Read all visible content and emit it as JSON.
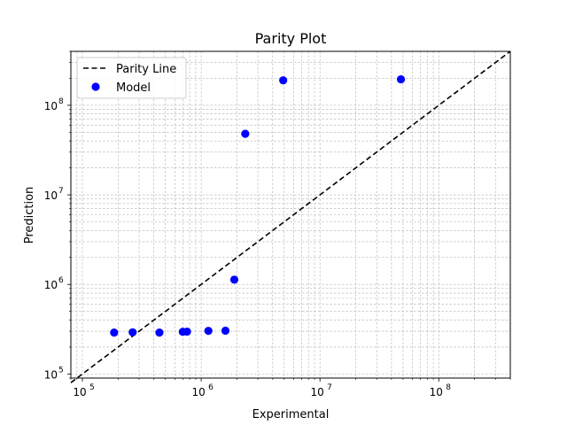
{
  "chart_data": {
    "type": "scatter",
    "title": "Parity Plot",
    "xlabel": "Experimental",
    "ylabel": "Prediction",
    "xscale": "log",
    "yscale": "log",
    "xlim": [
      80000,
      400000000
    ],
    "ylim": [
      90000,
      400000000
    ],
    "grid": true,
    "grid_minor": true,
    "legend_position": "top-left",
    "x_ticks": [
      {
        "value": 100000,
        "base": "10",
        "exp": "5"
      },
      {
        "value": 1000000,
        "base": "10",
        "exp": "6"
      },
      {
        "value": 10000000,
        "base": "10",
        "exp": "7"
      },
      {
        "value": 100000000,
        "base": "10",
        "exp": "8"
      }
    ],
    "y_ticks": [
      {
        "value": 100000,
        "base": "10",
        "exp": "5"
      },
      {
        "value": 1000000,
        "base": "10",
        "exp": "6"
      },
      {
        "value": 10000000,
        "base": "10",
        "exp": "7"
      },
      {
        "value": 100000000,
        "base": "10",
        "exp": "8"
      }
    ],
    "series": [
      {
        "name": "Parity Line",
        "kind": "line",
        "style": "dashed",
        "color": "#000000",
        "x": [
          80000,
          400000000
        ],
        "y": [
          80000,
          400000000
        ]
      },
      {
        "name": "Model",
        "kind": "scatter",
        "color": "#0000ff",
        "x": [
          185000,
          265000,
          445000,
          700000,
          760000,
          1150000,
          1600000,
          1900000,
          2350000,
          4900000,
          48000000
        ],
        "y": [
          290000,
          292000,
          290000,
          296000,
          297000,
          303000,
          304000,
          1130000,
          48000000,
          190000000,
          195000000
        ]
      }
    ]
  }
}
